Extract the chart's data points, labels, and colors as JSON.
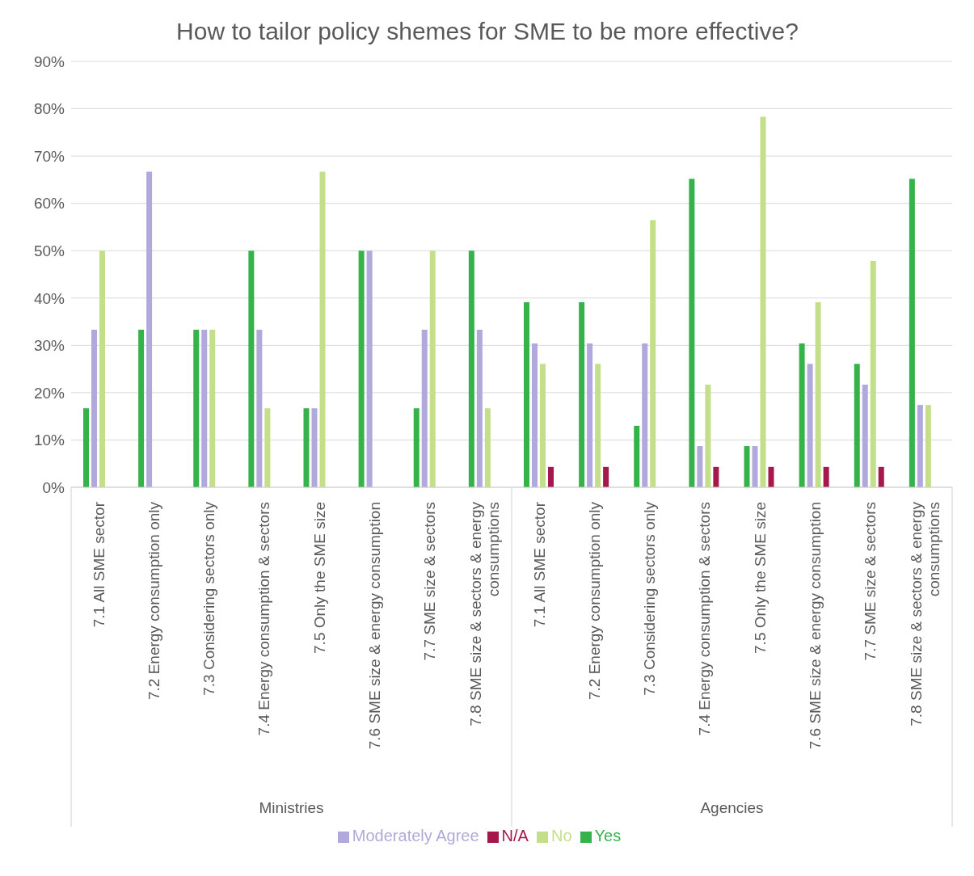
{
  "chart_data": {
    "type": "bar",
    "title": "How to tailor policy shemes for SME to be more effective?",
    "categories": [
      "7.1 All SME sector",
      "7.2 Energy consumption only",
      "7.3 Considering sectors only",
      "7.4 Energy consumption & sectors",
      "7.5 Only the SME size",
      "7.6 SME size & energy consumption",
      "7.7 SME size & sectors",
      "7.8 SME size & sectors & energy consumptions",
      "7.1 All SME sector",
      "7.2 Energy consumption only",
      "7.3 Considering sectors only",
      "7.4 Energy consumption & sectors",
      "7.5 Only the SME size",
      "7.6 SME size & energy consumption",
      "7.7 SME size & sectors",
      "7.8 SME size & sectors & energy consumptions"
    ],
    "series": [
      {
        "name": "Yes",
        "color": "#35b34a",
        "values": [
          16.7,
          33.3,
          33.3,
          50,
          16.7,
          50,
          16.7,
          50,
          39.1,
          39.1,
          13.0,
          65.2,
          8.7,
          30.4,
          26.1,
          65.2
        ]
      },
      {
        "name": "Moderately Agree",
        "color": "#b1a8dc",
        "values": [
          33.3,
          66.7,
          33.3,
          33.3,
          16.7,
          50,
          33.3,
          33.3,
          30.4,
          30.4,
          30.4,
          8.7,
          8.7,
          26.1,
          21.7,
          17.4
        ]
      },
      {
        "name": "No",
        "color": "#c4df89",
        "values": [
          50,
          0,
          33.3,
          16.7,
          66.7,
          0,
          50,
          16.7,
          26.1,
          26.1,
          56.5,
          21.7,
          78.3,
          39.1,
          47.8,
          17.4
        ]
      },
      {
        "name": "N/A",
        "color": "#a6184b",
        "values": [
          0,
          0,
          0,
          0,
          0,
          0,
          0,
          0,
          4.3,
          4.3,
          0,
          4.3,
          4.3,
          4.3,
          4.3,
          0
        ]
      }
    ],
    "annotations": [
      "Ministries",
      "Agencies"
    ],
    "ylim": [
      0,
      90
    ],
    "yticks": [
      {
        "value": 0,
        "label": "0%"
      },
      {
        "value": 10,
        "label": "10%"
      },
      {
        "value": 20,
        "label": "20%"
      },
      {
        "value": 30,
        "label": "30%"
      },
      {
        "value": 40,
        "label": "40%"
      },
      {
        "value": 50,
        "label": "50%"
      },
      {
        "value": 60,
        "label": "60%"
      },
      {
        "value": 70,
        "label": "70%"
      },
      {
        "value": 80,
        "label": "80%"
      },
      {
        "value": 90,
        "label": "90%"
      }
    ],
    "grid": "y",
    "legend": "bottom"
  }
}
